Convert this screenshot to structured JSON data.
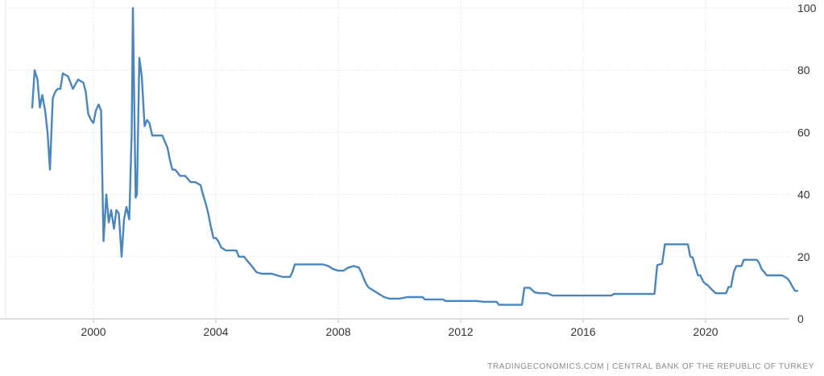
{
  "chart_data": {
    "type": "line",
    "title": "",
    "xlabel": "",
    "ylabel": "",
    "xlim": [
      1998.0,
      2023.0
    ],
    "ylim": [
      0,
      100
    ],
    "x_ticks": [
      2000,
      2004,
      2008,
      2012,
      2016,
      2020
    ],
    "y_ticks": [
      0,
      20,
      40,
      60,
      80,
      100
    ],
    "grid": true,
    "y_axis_side": "right",
    "line_color": "#4a86be",
    "series": [
      {
        "name": "",
        "points": [
          [
            1998.0,
            68
          ],
          [
            1998.08,
            80
          ],
          [
            1998.17,
            77
          ],
          [
            1998.25,
            68
          ],
          [
            1998.33,
            72
          ],
          [
            1998.42,
            67
          ],
          [
            1998.5,
            60
          ],
          [
            1998.58,
            48
          ],
          [
            1998.67,
            71
          ],
          [
            1998.75,
            73
          ],
          [
            1998.83,
            74
          ],
          [
            1998.92,
            74
          ],
          [
            1999.0,
            79
          ],
          [
            1999.17,
            78
          ],
          [
            1999.33,
            74
          ],
          [
            1999.5,
            77
          ],
          [
            1999.67,
            76
          ],
          [
            1999.75,
            73
          ],
          [
            1999.83,
            66
          ],
          [
            1999.92,
            64
          ],
          [
            2000.0,
            63
          ],
          [
            2000.08,
            67
          ],
          [
            2000.17,
            69
          ],
          [
            2000.25,
            67
          ],
          [
            2000.33,
            25
          ],
          [
            2000.42,
            40
          ],
          [
            2000.5,
            31
          ],
          [
            2000.58,
            35
          ],
          [
            2000.67,
            29
          ],
          [
            2000.75,
            35
          ],
          [
            2000.83,
            34
          ],
          [
            2000.92,
            20
          ],
          [
            2001.0,
            32
          ],
          [
            2001.08,
            36
          ],
          [
            2001.17,
            32
          ],
          [
            2001.25,
            60
          ],
          [
            2001.29,
            100
          ],
          [
            2001.38,
            39
          ],
          [
            2001.42,
            40
          ],
          [
            2001.5,
            84
          ],
          [
            2001.58,
            78
          ],
          [
            2001.67,
            62
          ],
          [
            2001.75,
            64
          ],
          [
            2001.83,
            63
          ],
          [
            2001.92,
            59
          ],
          [
            2002.0,
            59
          ],
          [
            2002.25,
            59
          ],
          [
            2002.42,
            55
          ],
          [
            2002.5,
            51
          ],
          [
            2002.58,
            48
          ],
          [
            2002.67,
            48
          ],
          [
            2002.83,
            46
          ],
          [
            2003.0,
            46
          ],
          [
            2003.17,
            44
          ],
          [
            2003.33,
            44
          ],
          [
            2003.5,
            43
          ],
          [
            2003.58,
            40
          ],
          [
            2003.67,
            37
          ],
          [
            2003.75,
            34
          ],
          [
            2003.83,
            30
          ],
          [
            2003.92,
            26
          ],
          [
            2004.0,
            26
          ],
          [
            2004.08,
            25
          ],
          [
            2004.17,
            23
          ],
          [
            2004.33,
            22
          ],
          [
            2004.5,
            22
          ],
          [
            2004.67,
            22
          ],
          [
            2004.75,
            20
          ],
          [
            2004.92,
            20
          ],
          [
            2005.0,
            19
          ],
          [
            2005.17,
            17
          ],
          [
            2005.33,
            15
          ],
          [
            2005.5,
            14.5
          ],
          [
            2005.67,
            14.5
          ],
          [
            2005.83,
            14.5
          ],
          [
            2006.0,
            14
          ],
          [
            2006.17,
            13.5
          ],
          [
            2006.33,
            13.5
          ],
          [
            2006.42,
            13.5
          ],
          [
            2006.5,
            15
          ],
          [
            2006.58,
            17.5
          ],
          [
            2006.75,
            17.5
          ],
          [
            2007.0,
            17.5
          ],
          [
            2007.25,
            17.5
          ],
          [
            2007.5,
            17.5
          ],
          [
            2007.67,
            17
          ],
          [
            2007.83,
            16
          ],
          [
            2008.0,
            15.5
          ],
          [
            2008.17,
            15.5
          ],
          [
            2008.33,
            16.5
          ],
          [
            2008.5,
            17
          ],
          [
            2008.67,
            16.5
          ],
          [
            2008.75,
            15
          ],
          [
            2008.83,
            13
          ],
          [
            2008.92,
            11
          ],
          [
            2009.0,
            10
          ],
          [
            2009.17,
            9
          ],
          [
            2009.33,
            8
          ],
          [
            2009.5,
            7
          ],
          [
            2009.67,
            6.5
          ],
          [
            2009.83,
            6.5
          ],
          [
            2010.0,
            6.5
          ],
          [
            2010.25,
            7
          ],
          [
            2010.5,
            7
          ],
          [
            2010.75,
            7
          ],
          [
            2010.83,
            6.25
          ],
          [
            2011.0,
            6.25
          ],
          [
            2011.25,
            6.25
          ],
          [
            2011.42,
            6.25
          ],
          [
            2011.5,
            5.75
          ],
          [
            2011.75,
            5.75
          ],
          [
            2012.0,
            5.75
          ],
          [
            2012.5,
            5.75
          ],
          [
            2012.75,
            5.5
          ],
          [
            2013.0,
            5.5
          ],
          [
            2013.17,
            5.5
          ],
          [
            2013.25,
            4.5
          ],
          [
            2013.5,
            4.5
          ],
          [
            2013.92,
            4.5
          ],
          [
            2014.0,
            4.5
          ],
          [
            2014.08,
            10
          ],
          [
            2014.25,
            10
          ],
          [
            2014.42,
            8.5
          ],
          [
            2014.58,
            8.25
          ],
          [
            2014.83,
            8.25
          ],
          [
            2015.0,
            7.5
          ],
          [
            2015.5,
            7.5
          ],
          [
            2016.0,
            7.5
          ],
          [
            2016.5,
            7.5
          ],
          [
            2016.92,
            7.5
          ],
          [
            2017.0,
            8
          ],
          [
            2017.5,
            8
          ],
          [
            2018.0,
            8
          ],
          [
            2018.33,
            8
          ],
          [
            2018.42,
            17.25
          ],
          [
            2018.58,
            17.75
          ],
          [
            2018.67,
            24
          ],
          [
            2018.83,
            24
          ],
          [
            2019.0,
            24
          ],
          [
            2019.33,
            24
          ],
          [
            2019.42,
            24
          ],
          [
            2019.5,
            20
          ],
          [
            2019.58,
            19.75
          ],
          [
            2019.67,
            16.5
          ],
          [
            2019.75,
            14
          ],
          [
            2019.83,
            14
          ],
          [
            2019.92,
            12
          ],
          [
            2020.0,
            11.25
          ],
          [
            2020.08,
            10.75
          ],
          [
            2020.17,
            9.75
          ],
          [
            2020.33,
            8.25
          ],
          [
            2020.5,
            8.25
          ],
          [
            2020.67,
            8.25
          ],
          [
            2020.75,
            10.25
          ],
          [
            2020.83,
            10.25
          ],
          [
            2020.92,
            15
          ],
          [
            2021.0,
            17
          ],
          [
            2021.17,
            17
          ],
          [
            2021.25,
            19
          ],
          [
            2021.5,
            19
          ],
          [
            2021.67,
            19
          ],
          [
            2021.75,
            18
          ],
          [
            2021.83,
            16
          ],
          [
            2021.92,
            15
          ],
          [
            2022.0,
            14
          ],
          [
            2022.25,
            14
          ],
          [
            2022.5,
            14
          ],
          [
            2022.67,
            13
          ],
          [
            2022.75,
            12
          ],
          [
            2022.83,
            10.5
          ],
          [
            2022.92,
            9
          ],
          [
            2023.0,
            9
          ]
        ]
      }
    ]
  },
  "source_text": "TRADINGECONOMICS.COM  |  CENTRAL BANK OF THE REPUBLIC OF TURKEY"
}
